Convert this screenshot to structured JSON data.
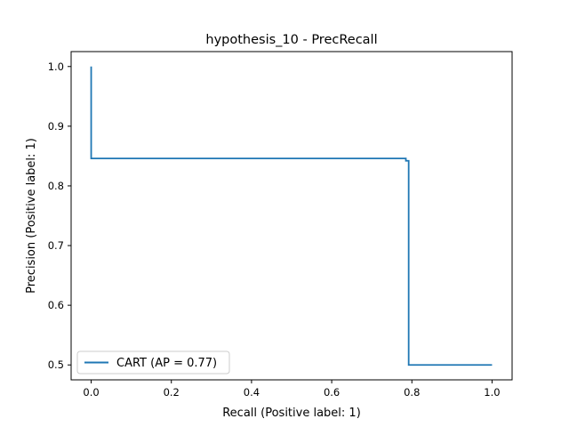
{
  "chart_data": {
    "type": "line",
    "title": "hypothesis_10 - PrecRecall",
    "xlabel": "Recall (Positive label: 1)",
    "ylabel": "Precision (Positive label: 1)",
    "xlim": [
      -0.05,
      1.05
    ],
    "ylim": [
      0.475,
      1.025
    ],
    "xticks": [
      0.0,
      0.2,
      0.4,
      0.6,
      0.8,
      1.0
    ],
    "xtick_labels": [
      "0.0",
      "0.2",
      "0.4",
      "0.6",
      "0.8",
      "1.0"
    ],
    "yticks": [
      0.5,
      0.6,
      0.7,
      0.8,
      0.9,
      1.0
    ],
    "ytick_labels": [
      "0.5",
      "0.6",
      "0.7",
      "0.8",
      "0.9",
      "1.0"
    ],
    "grid": false,
    "legend_position": "lower-left",
    "series": [
      {
        "name": "CART (AP = 0.77)",
        "color": "#1f77b4",
        "drawstyle": "steps-post",
        "x": [
          0.0,
          0.0,
          0.785,
          0.785,
          0.792,
          0.792,
          1.0
        ],
        "y": [
          1.0,
          0.846,
          0.846,
          0.842,
          0.842,
          0.5,
          0.5
        ]
      }
    ]
  }
}
